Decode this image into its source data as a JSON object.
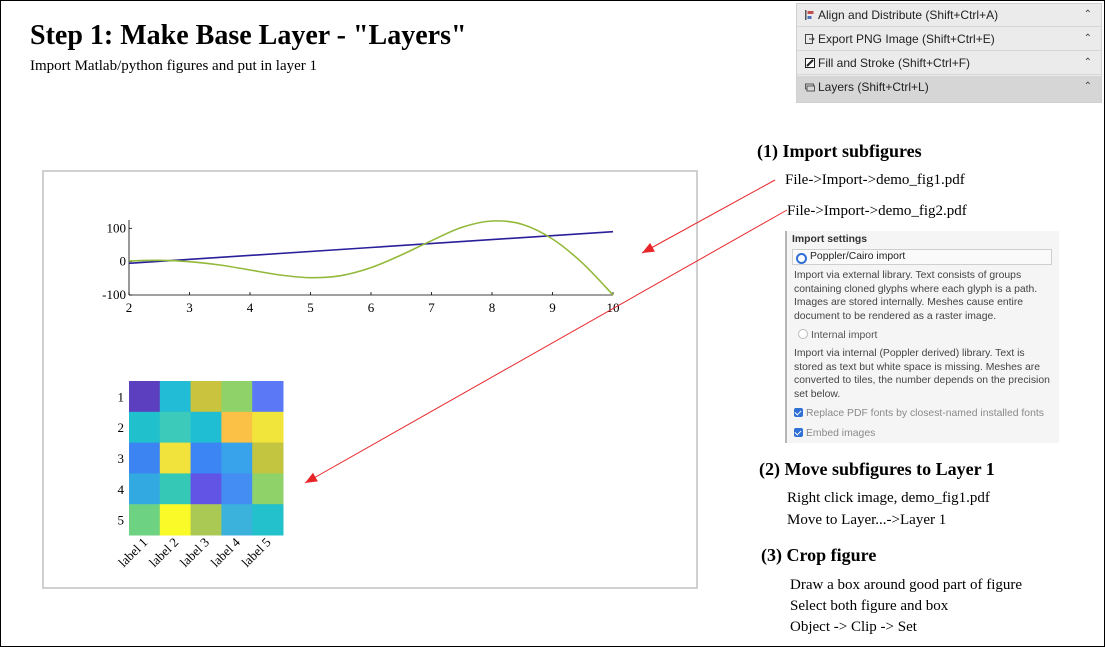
{
  "header": {
    "title": "Step 1: Make Base Layer - \"Layers\"",
    "subtitle": "Import Matlab/python figures and put in layer 1"
  },
  "dock": {
    "items": [
      {
        "label": "Align and Distribute (Shift+Ctrl+A)",
        "icon": "align-distribute-icon"
      },
      {
        "label": "Export PNG Image (Shift+Ctrl+E)",
        "icon": "export-icon"
      },
      {
        "label": "Fill and Stroke (Shift+Ctrl+F)",
        "icon": "fill-stroke-icon"
      },
      {
        "label": "Layers (Shift+Ctrl+L)",
        "icon": "layers-icon"
      }
    ]
  },
  "steps": {
    "import": {
      "heading": "(1) Import subfigures",
      "line1": "File->Import->demo_fig1.pdf",
      "line2": "File->Import->demo_fig2.pdf"
    },
    "move": {
      "heading": "(2) Move subfigures to Layer 1",
      "line1": "Right click image, demo_fig1.pdf",
      "line2": "Move to Layer...->Layer 1"
    },
    "crop": {
      "heading": "(3) Crop figure",
      "line1": "Draw a box around good part of figure",
      "line2": "Select both figure and box",
      "line3": "Object -> Clip -> Set"
    }
  },
  "import_settings": {
    "heading": "Import settings",
    "option_poppler": "Poppler/Cairo import",
    "poppler_desc": "Import via external library. Text consists of groups containing cloned glyphs where each glyph is a path. Images are stored internally. Meshes cause entire document to be rendered as a raster image.",
    "option_internal": "Internal import",
    "internal_desc": "Import via internal (Poppler derived) library. Text is stored as text but white space is missing. Meshes are converted to tiles, the number depends on the precision set below.",
    "replace_fonts": "Replace PDF fonts by closest-named installed fonts",
    "embed_images": "Embed images"
  },
  "colors": {
    "arrow": "#e8262a",
    "line_series_1": "#2a1f9a",
    "line_series_2": "#93b93a"
  },
  "chart_data": [
    {
      "type": "line",
      "x_ticks": [
        "2",
        "3",
        "4",
        "5",
        "6",
        "7",
        "8",
        "9",
        "10"
      ],
      "y_ticks": [
        "100",
        "0",
        "-100"
      ],
      "xlim": [
        2,
        10
      ],
      "ylim": [
        -100,
        125
      ],
      "series": [
        {
          "x": [
            2,
            10
          ],
          "y": [
            -5,
            90
          ]
        },
        {
          "x": [
            2,
            2.5,
            3,
            3.5,
            4,
            4.5,
            5,
            5.5,
            6,
            6.5,
            7,
            7.5,
            8,
            8.5,
            9,
            9.5,
            10
          ],
          "y": [
            2,
            4,
            0,
            -10,
            -25,
            -40,
            -48,
            -42,
            -18,
            20,
            63,
            103,
            122,
            112,
            68,
            -5,
            -100
          ]
        }
      ]
    },
    {
      "type": "heatmap",
      "rows": [
        "1",
        "2",
        "3",
        "4",
        "5"
      ],
      "columns": [
        "label 1",
        "label 2",
        "label 3",
        "label 4",
        "label 5"
      ],
      "cells": [
        [
          "#5b3fbf",
          "#22bcd6",
          "#c9c33e",
          "#8fd26a",
          "#5b79f6"
        ],
        [
          "#20c0cc",
          "#3ccabb",
          "#1fbed2",
          "#fbc046",
          "#f1e43a"
        ],
        [
          "#3b84f2",
          "#f2e23c",
          "#3b86f4",
          "#38a3ea",
          "#c3c43f"
        ],
        [
          "#33a9e2",
          "#36c8b6",
          "#6255e6",
          "#448df2",
          "#8fd26a"
        ],
        [
          "#6ed283",
          "#f9fa27",
          "#aac854",
          "#3bb2dc",
          "#22c1cc"
        ]
      ]
    }
  ]
}
